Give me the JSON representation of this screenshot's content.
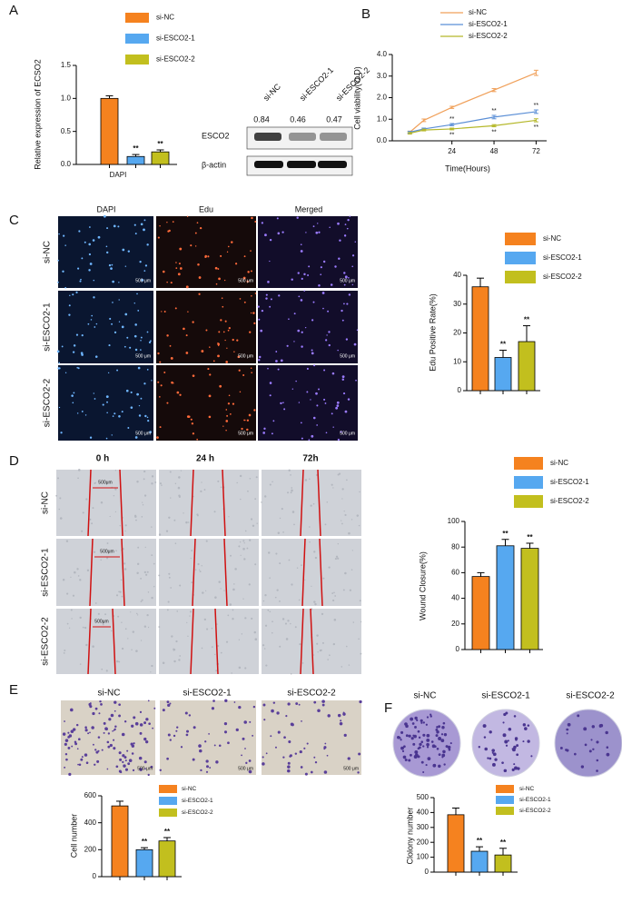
{
  "chart_data": [
    {
      "type": "bar",
      "ylabel": "Relative expression of ECSO2",
      "categories": [
        "DAPI"
      ],
      "ylim": [
        0,
        1.5
      ],
      "yticks": [
        {
          "value": 0,
          "label": "0.0"
        },
        {
          "value": 0.5,
          "label": "0.5"
        },
        {
          "value": 1,
          "label": "1.0"
        },
        {
          "value": 1.5,
          "label": "1.5"
        }
      ],
      "series": [
        {
          "name": "si-NC",
          "color": "#f5821f",
          "values": [
            1.0
          ],
          "errors": [
            0.04
          ]
        },
        {
          "name": "si-ESCO2-1",
          "color": "#56a8f0",
          "values": [
            0.12
          ],
          "errors": [
            0.03
          ],
          "annotation": "**"
        },
        {
          "name": "si-ESCO2-2",
          "color": "#c2bf1e",
          "values": [
            0.19
          ],
          "errors": [
            0.03
          ],
          "annotation": "**"
        }
      ]
    },
    {
      "type": "line",
      "ylabel": "Cell viability(O.D)",
      "xlabel": "Time(Hours)",
      "x": [
        0,
        8,
        24,
        48,
        72
      ],
      "xlim": [
        -10,
        78
      ],
      "xticks": [
        24,
        48,
        72
      ],
      "ylim": [
        0,
        4
      ],
      "yticks": [
        {
          "value": 0,
          "label": "0.0"
        },
        {
          "value": 1,
          "label": "1.0"
        },
        {
          "value": 2,
          "label": "2.0"
        },
        {
          "value": 3,
          "label": "3.0"
        },
        {
          "value": 4,
          "label": "4.0"
        }
      ],
      "series": [
        {
          "name": "si-NC",
          "color": "#f0a05a",
          "values": [
            0.4,
            0.95,
            1.55,
            2.35,
            3.15
          ],
          "errors": [
            0.05,
            0.06,
            0.05,
            0.07,
            0.12
          ]
        },
        {
          "name": "si-ESCO2-1",
          "color": "#5b8fd6",
          "values": [
            0.4,
            0.55,
            0.75,
            1.1,
            1.35
          ],
          "errors": [
            0.04,
            0.04,
            0.05,
            0.08,
            0.08
          ],
          "point_labels": [
            null,
            null,
            "**",
            "**",
            "**"
          ]
        },
        {
          "name": "si-ESCO2-2",
          "color": "#b5b82a",
          "values": [
            0.35,
            0.5,
            0.55,
            0.7,
            0.95
          ],
          "errors": [
            0.04,
            0.04,
            0.04,
            0.05,
            0.07
          ],
          "point_labels": [
            null,
            null,
            "**",
            "**",
            "**"
          ]
        }
      ]
    },
    {
      "type": "bar",
      "ylabel": "Edu Positive Rate(%)",
      "ylim": [
        0,
        40
      ],
      "yticks": [
        0,
        10,
        20,
        30,
        40
      ],
      "series": [
        {
          "name": "si-NC",
          "color": "#f5821f",
          "values": [
            36
          ],
          "errors": [
            3
          ]
        },
        {
          "name": "si-ESCO2-1",
          "color": "#56a8f0",
          "values": [
            11.5
          ],
          "errors": [
            2.5
          ],
          "annotation": "**"
        },
        {
          "name": "si-ESCO2-2",
          "color": "#c2bf1e",
          "values": [
            17
          ],
          "errors": [
            5.5
          ],
          "annotation": "**"
        }
      ]
    },
    {
      "type": "bar",
      "ylabel": "Wound Closure(%)",
      "ylim": [
        0,
        100
      ],
      "yticks": [
        0,
        20,
        40,
        60,
        80,
        100
      ],
      "series": [
        {
          "name": "si-NC",
          "color": "#f5821f",
          "values": [
            57
          ],
          "errors": [
            3
          ]
        },
        {
          "name": "si-ESCO2-1",
          "color": "#56a8f0",
          "values": [
            81
          ],
          "errors": [
            5
          ],
          "annotation": "**"
        },
        {
          "name": "si-ESCO2-2",
          "color": "#c2bf1e",
          "values": [
            79
          ],
          "errors": [
            4
          ],
          "annotation": "**"
        }
      ]
    },
    {
      "type": "bar",
      "ylabel": "Cell number",
      "ylim": [
        0,
        600
      ],
      "yticks": [
        0,
        200,
        400,
        600
      ],
      "series": [
        {
          "name": "si-NC",
          "color": "#f5821f",
          "values": [
            525
          ],
          "errors": [
            35
          ]
        },
        {
          "name": "si-ESCO2-1",
          "color": "#56a8f0",
          "values": [
            200
          ],
          "errors": [
            15
          ],
          "annotation": "**"
        },
        {
          "name": "si-ESCO2-2",
          "color": "#c2bf1e",
          "values": [
            265
          ],
          "errors": [
            25
          ],
          "annotation": "**"
        }
      ]
    },
    {
      "type": "bar",
      "ylabel": "Clolony number",
      "ylim": [
        0,
        500
      ],
      "yticks": [
        0,
        100,
        200,
        300,
        400,
        500
      ],
      "series": [
        {
          "name": "si-NC",
          "color": "#f5821f",
          "values": [
            385
          ],
          "errors": [
            45
          ]
        },
        {
          "name": "si-ESCO2-1",
          "color": "#56a8f0",
          "values": [
            140
          ],
          "errors": [
            30
          ],
          "annotation": "**"
        },
        {
          "name": "si-ESCO2-2",
          "color": "#c2bf1e",
          "values": [
            115
          ],
          "errors": [
            45
          ],
          "annotation": "**"
        }
      ]
    }
  ],
  "figure": {
    "panel_labels": [
      "A",
      "B",
      "C",
      "D",
      "E",
      "F"
    ],
    "blot": {
      "lanes": [
        "si-NC",
        "si-ESCO2-1",
        "si-ESCO2-2"
      ],
      "ratios": [
        0.84,
        0.46,
        0.47
      ],
      "proteins": [
        "ESCO2",
        "β-actin"
      ]
    },
    "edu": {
      "channels": [
        "DAPI",
        "Edu",
        "Merged"
      ],
      "groups": [
        "si-NC",
        "si-ESCO2-1",
        "si-ESCO2-2"
      ],
      "scale_bar": "500 μm"
    },
    "wound": {
      "times": [
        "0 h",
        "24 h",
        "72h"
      ],
      "groups": [
        "si-NC",
        "si-ESCO2-1",
        "si-ESCO2-2"
      ],
      "scale_bar": "500μm"
    },
    "transwell": {
      "groups": [
        "si-NC",
        "si-ESCO2-1",
        "si-ESCO2-2"
      ],
      "scale_bar": "500 μm"
    },
    "colony": {
      "groups": [
        "si-NC",
        "si-ESCO2-1",
        "si-ESCO2-2"
      ]
    }
  }
}
